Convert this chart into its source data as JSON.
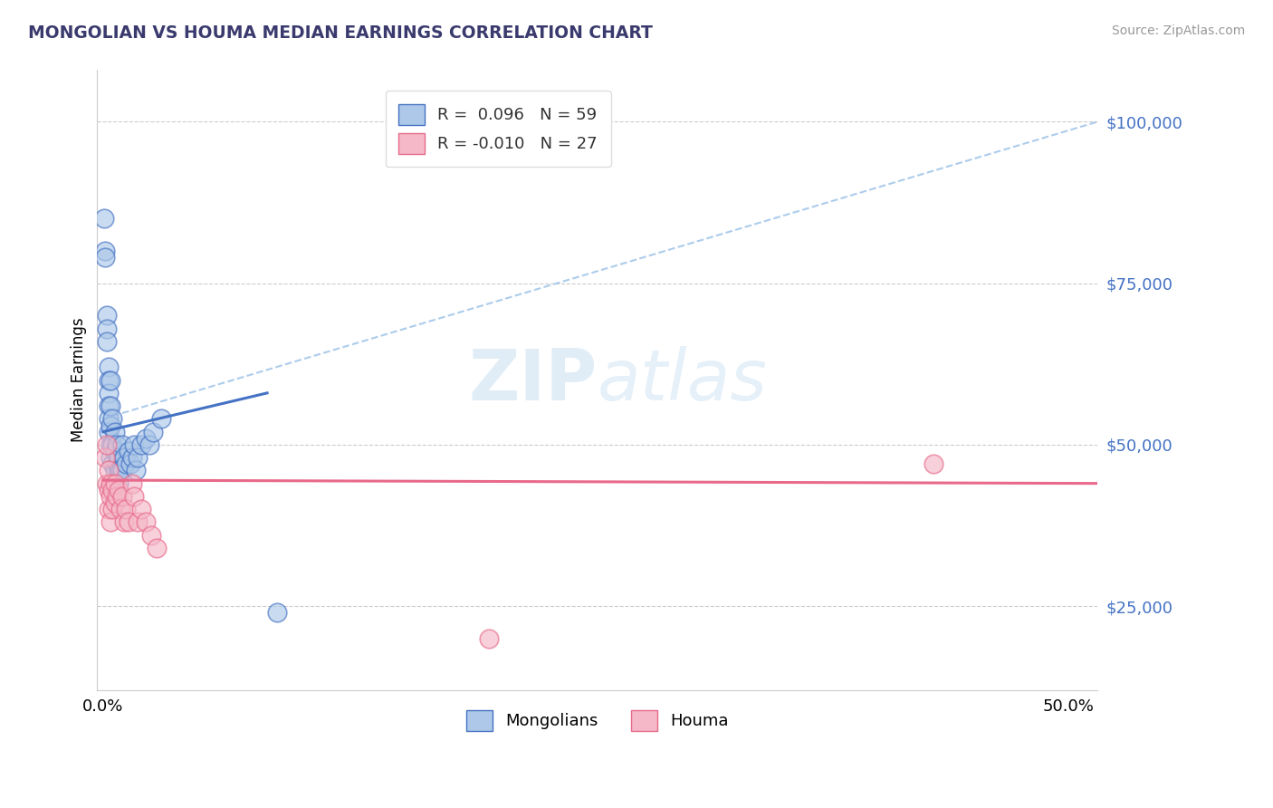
{
  "title": "MONGOLIAN VS HOUMA MEDIAN EARNINGS CORRELATION CHART",
  "source": "Source: ZipAtlas.com",
  "ylabel": "Median Earnings",
  "ytick_labels": [
    "$25,000",
    "$50,000",
    "$75,000",
    "$100,000"
  ],
  "ytick_values": [
    25000,
    50000,
    75000,
    100000
  ],
  "ymin": 12000,
  "ymax": 108000,
  "xmin": -0.003,
  "xmax": 0.515,
  "legend_label1": "Mongolians",
  "legend_label2": "Houma",
  "color_blue": "#adc8e8",
  "color_pink": "#f4b8c8",
  "line_blue": "#4472c4",
  "line_pink": "#e8698a",
  "line_dashed": "#9ec4e8",
  "background_color": "#ffffff",
  "mongolian_x": [
    0.0005,
    0.001,
    0.001,
    0.002,
    0.002,
    0.002,
    0.003,
    0.003,
    0.003,
    0.003,
    0.003,
    0.003,
    0.004,
    0.004,
    0.004,
    0.004,
    0.004,
    0.005,
    0.005,
    0.005,
    0.006,
    0.006,
    0.006,
    0.007,
    0.007,
    0.008,
    0.008,
    0.008,
    0.009,
    0.01,
    0.01,
    0.011,
    0.012,
    0.013,
    0.014,
    0.015,
    0.016,
    0.017,
    0.018,
    0.02,
    0.022,
    0.024,
    0.026,
    0.03,
    0.09
  ],
  "mongolian_y": [
    85000,
    80000,
    79000,
    70000,
    68000,
    66000,
    62000,
    60000,
    58000,
    56000,
    54000,
    52000,
    60000,
    56000,
    53000,
    50000,
    48000,
    54000,
    50000,
    47000,
    52000,
    49000,
    46000,
    50000,
    47000,
    48000,
    46000,
    44000,
    46000,
    50000,
    46000,
    48000,
    47000,
    49000,
    47000,
    48000,
    50000,
    46000,
    48000,
    50000,
    51000,
    50000,
    52000,
    54000,
    24000
  ],
  "houma_x": [
    0.001,
    0.002,
    0.002,
    0.003,
    0.003,
    0.003,
    0.004,
    0.004,
    0.004,
    0.005,
    0.005,
    0.006,
    0.006,
    0.007,
    0.008,
    0.009,
    0.01,
    0.011,
    0.012,
    0.013,
    0.015,
    0.016,
    0.018,
    0.02,
    0.022,
    0.025,
    0.028,
    0.43,
    0.2
  ],
  "houma_y": [
    48000,
    50000,
    44000,
    46000,
    43000,
    40000,
    44000,
    42000,
    38000,
    43000,
    40000,
    44000,
    41000,
    42000,
    43000,
    40000,
    42000,
    38000,
    40000,
    38000,
    44000,
    42000,
    38000,
    40000,
    38000,
    36000,
    34000,
    47000,
    20000
  ],
  "blue_line_x": [
    0.0,
    0.085
  ],
  "blue_line_y": [
    52000,
    58000
  ],
  "pink_line_x": [
    0.0,
    0.515
  ],
  "pink_line_y": [
    44500,
    44000
  ],
  "dash_line_x": [
    0.0,
    0.515
  ],
  "dash_line_y": [
    54000,
    100000
  ]
}
